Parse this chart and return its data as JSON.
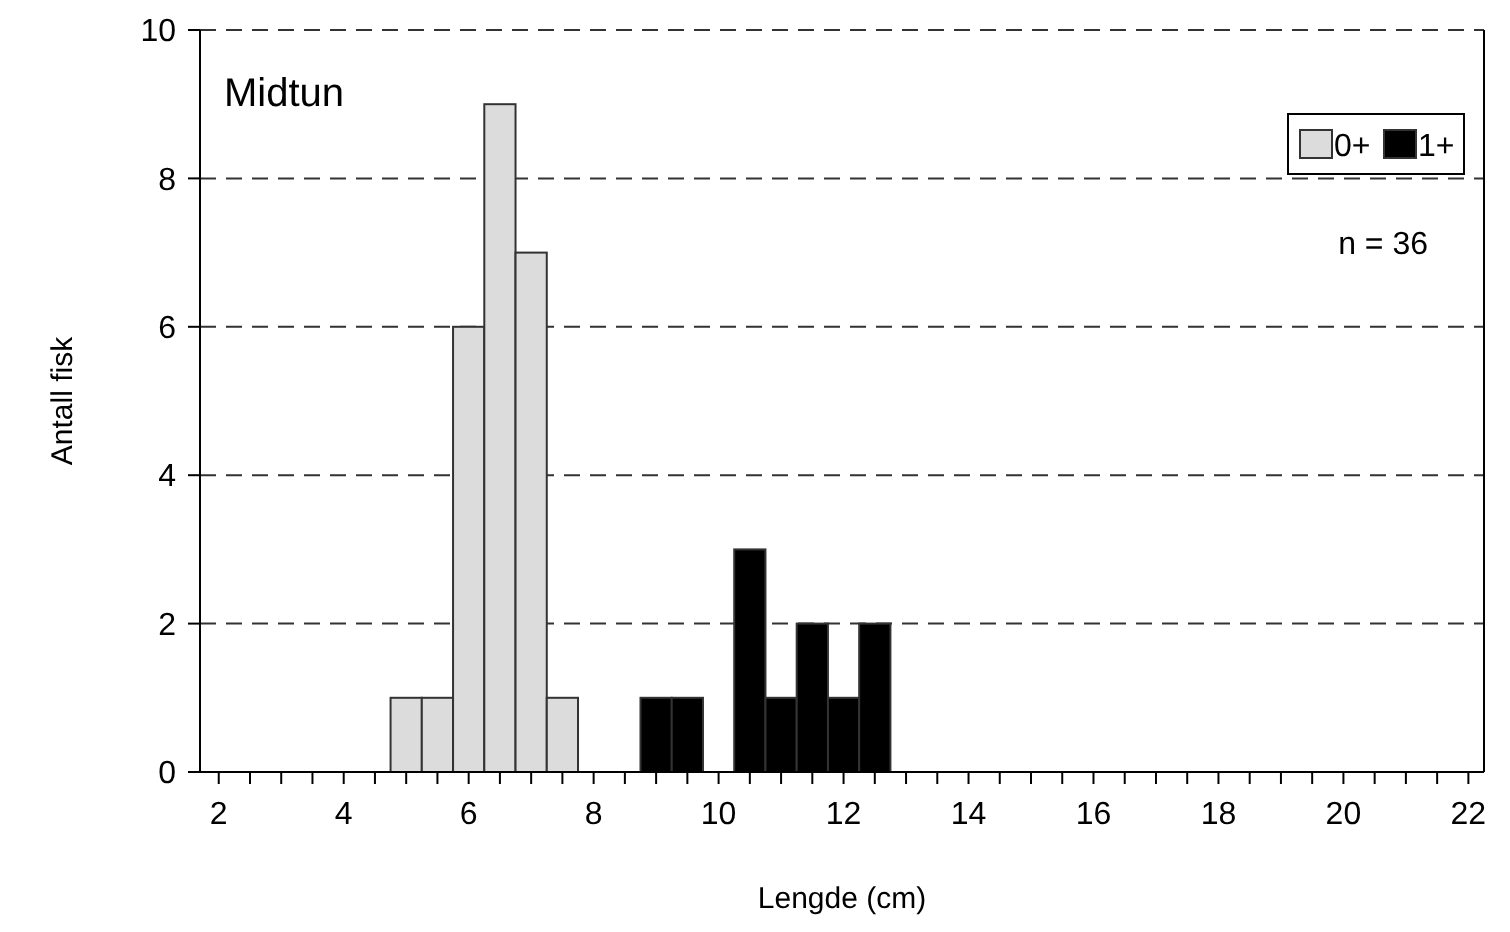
{
  "chart_data": {
    "type": "bar",
    "title": "Midtun",
    "xlabel": "Lengde (cm)",
    "ylabel": "Antall fisk",
    "annotations": [
      "n = 36"
    ],
    "series": [
      {
        "name": "0+",
        "color": "#dcdcdc",
        "x": [
          5,
          5.5,
          6,
          6.5,
          7,
          7.5
        ],
        "values": [
          1,
          1,
          6,
          9,
          7,
          1
        ]
      },
      {
        "name": "1+",
        "color": "#000000",
        "x": [
          9,
          9.5,
          10.5,
          11,
          11.5,
          12,
          12.5
        ],
        "values": [
          1,
          1,
          3,
          1,
          2,
          1,
          2
        ]
      }
    ],
    "xlim": [
      1.7,
      22.25
    ],
    "xticks": [
      2,
      {
        "value": 2.5,
        "label": null
      },
      {
        "value": 3,
        "label": null
      },
      {
        "value": 3.5,
        "label": null
      },
      4,
      {
        "value": 4.5,
        "label": null
      },
      {
        "value": 5,
        "label": null
      },
      {
        "value": 5.5,
        "label": null
      },
      6,
      {
        "value": 6.5,
        "label": null
      },
      {
        "value": 7,
        "label": null
      },
      {
        "value": 7.5,
        "label": null
      },
      8,
      {
        "value": 8.5,
        "label": null
      },
      {
        "value": 9,
        "label": null
      },
      {
        "value": 9.5,
        "label": null
      },
      10,
      {
        "value": 10.5,
        "label": null
      },
      {
        "value": 11,
        "label": null
      },
      {
        "value": 11.5,
        "label": null
      },
      12,
      {
        "value": 12.5,
        "label": null
      },
      {
        "value": 13,
        "label": null
      },
      {
        "value": 13.5,
        "label": null
      },
      14,
      {
        "value": 14.5,
        "label": null
      },
      {
        "value": 15,
        "label": null
      },
      {
        "value": 15.5,
        "label": null
      },
      16,
      {
        "value": 16.5,
        "label": null
      },
      {
        "value": 17,
        "label": null
      },
      {
        "value": 17.5,
        "label": null
      },
      18,
      {
        "value": 18.5,
        "label": null
      },
      {
        "value": 19,
        "label": null
      },
      {
        "value": 19.5,
        "label": null
      },
      20,
      {
        "value": 20.5,
        "label": null
      },
      {
        "value": 21,
        "label": null
      },
      {
        "value": 21.5,
        "label": null
      },
      22
    ],
    "ylim": [
      0,
      10
    ],
    "yticks": [
      0,
      2,
      4,
      6,
      8,
      10
    ],
    "grid": "y",
    "legend": "top right"
  }
}
